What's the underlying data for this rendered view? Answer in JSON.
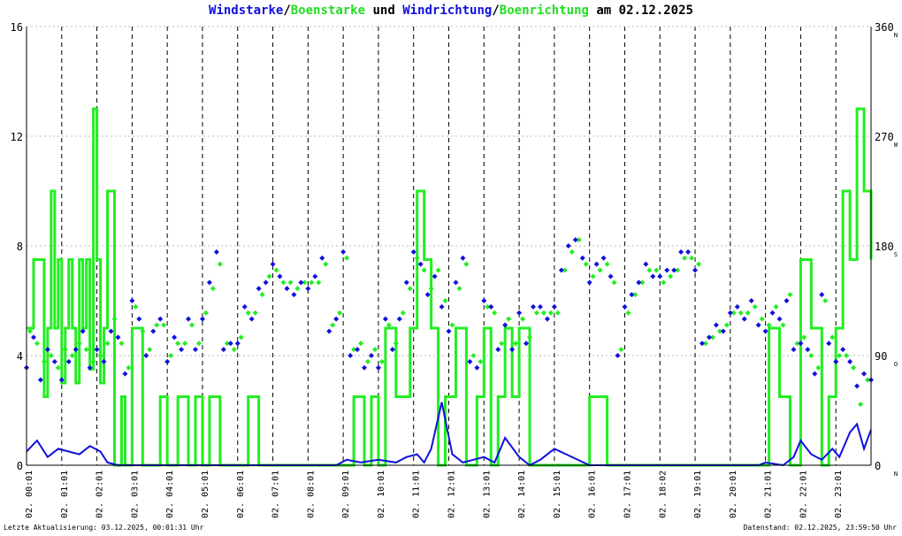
{
  "title": {
    "part1": "Windstarke",
    "sep1": "/",
    "part2": "Boenstarke",
    "part3": " und ",
    "part4": "Windrichtung",
    "sep2": "/",
    "part5": "Boenrichtung",
    "part6": " am 02.12.2025"
  },
  "colors": {
    "wind": "#1010dd",
    "gust": "#22ee22",
    "direction_wind": "#1010dd",
    "direction_gust": "#22ee22"
  },
  "footer": {
    "left": "Letzte Aktualisierung: 03.12.2025, 00:01:31 Uhr",
    "right": "Datenstand: 02.12.2025, 23:59:50 Uhr"
  },
  "chart_data": {
    "type": "line",
    "x_unit": "hours",
    "xlim": [
      0,
      24
    ],
    "ylim_left": [
      0,
      16
    ],
    "ylim_right": [
      0,
      360
    ],
    "left_ticks": [
      "0",
      "4",
      "8",
      "12",
      "16"
    ],
    "right_ticks": [
      "0",
      "90",
      "180",
      "270",
      "360"
    ],
    "right_compass": [
      "N",
      "O",
      "S",
      "W",
      "N"
    ],
    "grid": true,
    "x_tick_labels": [
      "02. 00:01",
      "02. 01:01",
      "02. 02:01",
      "02. 03:01",
      "02. 04:01",
      "02. 05:01",
      "02. 06:01",
      "02. 07:01",
      "02. 08:01",
      "02. 09:01",
      "02. 10:01",
      "02. 11:01",
      "02. 12:01",
      "02. 13:01",
      "02. 14:01",
      "02. 15:01",
      "02. 16:01",
      "02. 17:01",
      "02. 18:02",
      "02. 19:01",
      "02. 20:01",
      "02. 21:01",
      "02. 22:01",
      "02. 23:01"
    ],
    "series": [
      {
        "name": "Windstarke",
        "kind": "line",
        "axis": "left",
        "x": [
          0,
          0.3,
          0.6,
          0.9,
          1.2,
          1.5,
          1.8,
          2.1,
          2.3,
          2.6,
          3,
          4,
          5,
          6,
          7,
          8,
          8.8,
          9.1,
          9.5,
          10,
          10.5,
          10.8,
          11.1,
          11.3,
          11.5,
          11.8,
          12.1,
          12.4,
          12.7,
          13,
          13.3,
          13.6,
          14,
          14.3,
          14.6,
          15,
          16,
          17,
          18,
          19,
          20,
          20.8,
          21,
          21.5,
          21.8,
          22,
          22.3,
          22.6,
          22.9,
          23.1,
          23.4,
          23.6,
          23.8,
          24
        ],
        "values": [
          0.5,
          0.9,
          0.3,
          0.6,
          0.5,
          0.4,
          0.7,
          0.5,
          0.1,
          0.0,
          0.0,
          0.0,
          0.0,
          0.0,
          0.0,
          0.0,
          0.0,
          0.2,
          0.1,
          0.2,
          0.1,
          0.3,
          0.4,
          0.1,
          0.6,
          2.3,
          0.4,
          0.1,
          0.2,
          0.3,
          0.1,
          1.0,
          0.3,
          0.0,
          0.2,
          0.6,
          0.0,
          0.0,
          0.0,
          0.0,
          0.0,
          0.0,
          0.1,
          0.0,
          0.3,
          0.9,
          0.4,
          0.2,
          0.6,
          0.3,
          1.2,
          1.5,
          0.6,
          1.3
        ]
      },
      {
        "name": "Boenstarke",
        "kind": "step",
        "axis": "left",
        "x": [
          0,
          0.2,
          0.5,
          0.6,
          0.7,
          0.8,
          0.9,
          1.0,
          1.1,
          1.2,
          1.3,
          1.4,
          1.5,
          1.6,
          1.7,
          1.8,
          1.9,
          2.0,
          2.1,
          2.2,
          2.3,
          2.5,
          2.7,
          2.8,
          3.0,
          3.3,
          3.6,
          3.8,
          4.0,
          4.3,
          4.6,
          4.8,
          5.0,
          5.2,
          5.5,
          5.8,
          6.0,
          6.3,
          6.6,
          7.0,
          7.2,
          7.5,
          8.0,
          9.0,
          9.3,
          9.6,
          9.8,
          10.0,
          10.2,
          10.5,
          10.9,
          11.1,
          11.3,
          11.5,
          11.7,
          11.9,
          12.2,
          12.5,
          12.8,
          13.0,
          13.2,
          13.4,
          13.6,
          13.8,
          14.0,
          14.3,
          14.6,
          15.0,
          15.5,
          15.8,
          16.0,
          16.5,
          17.0,
          18.0,
          19.0,
          20.0,
          20.8,
          21.1,
          21.4,
          21.7,
          22.0,
          22.3,
          22.6,
          22.8,
          23.0,
          23.2,
          23.4,
          23.6,
          23.8,
          24
        ],
        "values": [
          5.0,
          7.5,
          2.5,
          5.0,
          10.0,
          5.0,
          7.5,
          3.0,
          5.0,
          7.5,
          5.0,
          3.0,
          7.5,
          5.0,
          7.5,
          3.5,
          13.0,
          7.5,
          3.0,
          5.0,
          10.0,
          0.0,
          2.5,
          0.0,
          5.0,
          0.0,
          0.0,
          2.5,
          0.0,
          2.5,
          0.0,
          2.5,
          0.0,
          2.5,
          0.0,
          0.0,
          0.0,
          2.5,
          0.0,
          0.0,
          0.0,
          0.0,
          0.0,
          0.0,
          2.5,
          0.0,
          2.5,
          0.0,
          5.0,
          2.5,
          5.0,
          10.0,
          7.5,
          5.0,
          0.0,
          2.5,
          5.0,
          0.0,
          2.5,
          5.0,
          0.0,
          2.5,
          5.0,
          2.5,
          5.0,
          0.0,
          0.0,
          0.0,
          0.0,
          0.0,
          2.5,
          0.0,
          0.0,
          0.0,
          0.0,
          0.0,
          0.0,
          5.0,
          2.5,
          0.0,
          7.5,
          5.0,
          0.0,
          2.5,
          5.0,
          10.0,
          7.5,
          13.0,
          10.0,
          7.5
        ]
      },
      {
        "name": "Windrichtung",
        "kind": "points",
        "axis": "right",
        "x": [
          0.0,
          0.2,
          0.4,
          0.6,
          0.8,
          1.0,
          1.2,
          1.4,
          1.6,
          1.8,
          2.0,
          2.2,
          2.4,
          2.6,
          2.8,
          3.0,
          3.2,
          3.4,
          3.6,
          3.8,
          4.0,
          4.2,
          4.4,
          4.6,
          4.8,
          5.0,
          5.2,
          5.4,
          5.6,
          5.8,
          6.0,
          6.2,
          6.4,
          6.6,
          6.8,
          7.0,
          7.2,
          7.4,
          7.6,
          7.8,
          8.0,
          8.2,
          8.4,
          8.6,
          8.8,
          9.0,
          9.2,
          9.4,
          9.6,
          9.8,
          10.0,
          10.2,
          10.4,
          10.6,
          10.8,
          11.0,
          11.2,
          11.4,
          11.6,
          11.8,
          12.0,
          12.2,
          12.4,
          12.6,
          12.8,
          13.0,
          13.2,
          13.4,
          13.6,
          13.8,
          14.0,
          14.2,
          14.4,
          14.6,
          14.8,
          15.0,
          15.2,
          15.4,
          15.6,
          15.8,
          16.0,
          16.2,
          16.4,
          16.6,
          16.8,
          17.0,
          17.2,
          17.4,
          17.6,
          17.8,
          18.0,
          18.2,
          18.4,
          18.6,
          18.8,
          19.0,
          19.2,
          19.4,
          19.6,
          19.8,
          20.0,
          20.2,
          20.4,
          20.6,
          20.8,
          21.0,
          21.2,
          21.4,
          21.6,
          21.8,
          22.0,
          22.2,
          22.4,
          22.6,
          22.8,
          23.0,
          23.2,
          23.4,
          23.6,
          23.8,
          24.0
        ],
        "values": [
          80,
          105,
          70,
          95,
          85,
          70,
          85,
          95,
          110,
          80,
          95,
          85,
          110,
          105,
          75,
          135,
          120,
          90,
          110,
          120,
          85,
          105,
          95,
          120,
          95,
          120,
          150,
          175,
          95,
          100,
          100,
          130,
          120,
          145,
          150,
          165,
          155,
          145,
          140,
          150,
          145,
          155,
          170,
          110,
          120,
          175,
          90,
          95,
          80,
          90,
          80,
          120,
          95,
          120,
          150,
          175,
          165,
          140,
          155,
          130,
          110,
          150,
          170,
          85,
          80,
          135,
          130,
          95,
          115,
          95,
          125,
          100,
          130,
          130,
          120,
          130,
          160,
          180,
          185,
          170,
          150,
          165,
          170,
          155,
          90,
          130,
          140,
          150,
          165,
          155,
          155,
          160,
          160,
          175,
          175,
          160,
          100,
          105,
          115,
          110,
          125,
          130,
          120,
          135,
          115,
          110,
          125,
          120,
          135,
          95,
          100,
          95,
          75,
          140,
          100,
          85,
          95,
          85,
          65,
          75,
          70
        ]
      },
      {
        "name": "Boenrichtung",
        "kind": "points",
        "axis": "right",
        "x": [
          0.1,
          0.3,
          0.5,
          0.7,
          0.9,
          1.1,
          1.3,
          1.5,
          1.7,
          1.9,
          2.1,
          2.3,
          2.5,
          2.7,
          2.9,
          3.1,
          3.3,
          3.5,
          3.7,
          3.9,
          4.1,
          4.3,
          4.5,
          4.7,
          4.9,
          5.1,
          5.3,
          5.5,
          5.7,
          5.9,
          6.1,
          6.3,
          6.5,
          6.7,
          6.9,
          7.1,
          7.3,
          7.5,
          7.7,
          7.9,
          8.1,
          8.3,
          8.5,
          8.7,
          8.9,
          9.1,
          9.3,
          9.5,
          9.7,
          9.9,
          10.1,
          10.3,
          10.5,
          10.7,
          10.9,
          11.1,
          11.3,
          11.5,
          11.7,
          11.9,
          12.1,
          12.3,
          12.5,
          12.7,
          12.9,
          13.1,
          13.3,
          13.5,
          13.7,
          13.9,
          14.1,
          14.3,
          14.5,
          14.7,
          14.9,
          15.1,
          15.3,
          15.5,
          15.7,
          15.9,
          16.1,
          16.3,
          16.5,
          16.7,
          16.9,
          17.1,
          17.3,
          17.5,
          17.7,
          17.9,
          18.1,
          18.3,
          18.5,
          18.7,
          18.9,
          19.1,
          19.3,
          19.5,
          19.7,
          19.9,
          20.1,
          20.3,
          20.5,
          20.7,
          20.9,
          21.1,
          21.3,
          21.5,
          21.7,
          21.9,
          22.1,
          22.3,
          22.5,
          22.7,
          22.9,
          23.1,
          23.3,
          23.5,
          23.7,
          23.9
        ],
        "values": [
          110,
          100,
          85,
          90,
          80,
          95,
          90,
          100,
          95,
          85,
          90,
          100,
          120,
          100,
          80,
          130,
          110,
          95,
          115,
          115,
          90,
          100,
          100,
          115,
          100,
          125,
          145,
          165,
          100,
          95,
          105,
          125,
          125,
          140,
          155,
          160,
          150,
          150,
          145,
          150,
          150,
          150,
          165,
          115,
          125,
          170,
          95,
          100,
          85,
          95,
          85,
          115,
          100,
          125,
          145,
          170,
          160,
          145,
          160,
          135,
          115,
          145,
          165,
          90,
          85,
          130,
          125,
          100,
          120,
          100,
          120,
          105,
          125,
          125,
          125,
          125,
          160,
          175,
          185,
          165,
          155,
          160,
          165,
          150,
          95,
          125,
          140,
          150,
          160,
          160,
          150,
          155,
          160,
          170,
          170,
          165,
          100,
          105,
          110,
          115,
          125,
          125,
          125,
          130,
          120,
          115,
          130,
          115,
          140,
          100,
          105,
          90,
          80,
          135,
          105,
          90,
          90,
          80,
          50,
          70
        ]
      }
    ]
  }
}
